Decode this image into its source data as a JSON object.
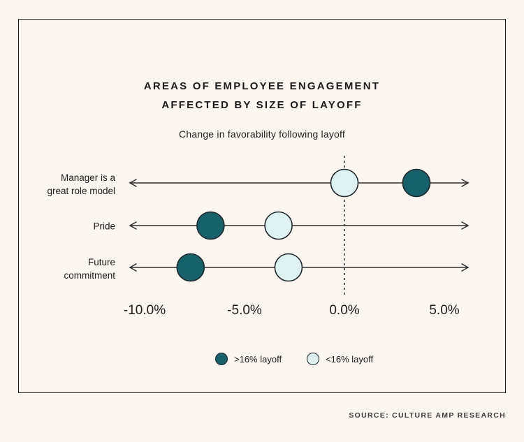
{
  "theme": {
    "background": "#FCF5F0",
    "text_color": "#1C1C1C",
    "line_color": "#2E2E2E",
    "border_color": "#1C1C1C",
    "dark_dot_color": "#16626A",
    "light_dot_color": "#DFF2F2",
    "dot_outline_color": "#1F262B"
  },
  "header": {
    "title_line1": "AREAS OF EMPLOYEE ENGAGEMENT",
    "title_line2": "AFFECTED BY SIZE OF LAYOFF",
    "subtitle": "Change in favorability following layoff"
  },
  "chart_data": {
    "type": "scatter",
    "variant": "horizontal-dot-plot",
    "title": "AREAS OF EMPLOYEE ENGAGEMENT AFFECTED BY SIZE OF LAYOFF",
    "subtitle": "Change in favorability following layoff",
    "categories": [
      "Manager is a great role model",
      "Pride",
      "Future commitment"
    ],
    "category_label_lines": [
      [
        "Manager is a",
        "great role model"
      ],
      [
        "Pride"
      ],
      [
        "Future",
        "commitment"
      ]
    ],
    "series": [
      {
        "name": ">16% layoff",
        "color": "#16626A",
        "values": [
          3.6,
          -6.7,
          -7.7
        ]
      },
      {
        "name": "<16% layoff",
        "color": "#DFF2F2",
        "values": [
          0.0,
          -3.3,
          -2.8
        ]
      }
    ],
    "x_ticks": [
      {
        "value": -10,
        "label": "-10.0%"
      },
      {
        "value": -5,
        "label": "-5.0%"
      },
      {
        "value": 0,
        "label": "0.0%"
      },
      {
        "value": 5,
        "label": "5.0%"
      }
    ],
    "xlim": [
      -10.7,
      6.2
    ],
    "x_unit": "%",
    "zero_reference_line": "dashed",
    "grid": false,
    "row_axis_arrows": "both-ends",
    "legend_position": "bottom"
  },
  "legend": {
    "items": [
      {
        "label": ">16% layoff",
        "color": "#16626A"
      },
      {
        "label": "<16% layoff",
        "color": "#DFF2F2"
      }
    ]
  },
  "footer": {
    "source_label": "SOURCE: CULTURE AMP RESEARCH"
  }
}
